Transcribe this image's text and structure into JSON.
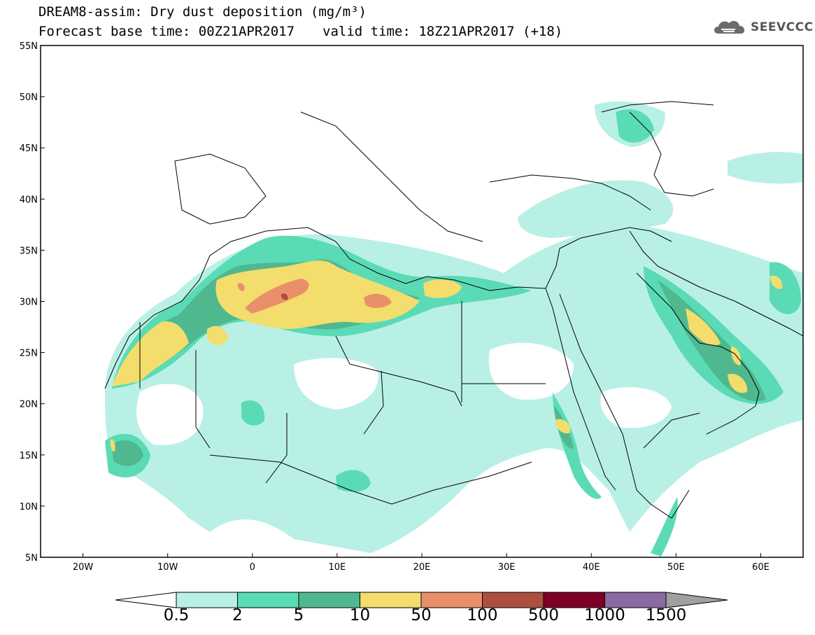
{
  "title": {
    "line1": "DREAM8-assim: Dry dust deposition (mg/m³)",
    "base_time": "Forecast base time: 00Z21APR2017",
    "valid_time": "valid time: 18Z21APR2017 (+18)"
  },
  "brand": {
    "name": "SEEVCCC",
    "icon": "cloud-logo-icon"
  },
  "map": {
    "extent": {
      "lon": [
        -25,
        65
      ],
      "lat": [
        5,
        55
      ]
    },
    "lat_ticks": [
      {
        "value": 55,
        "label": "55N"
      },
      {
        "value": 50,
        "label": "50N"
      },
      {
        "value": 45,
        "label": "45N"
      },
      {
        "value": 40,
        "label": "40N"
      },
      {
        "value": 35,
        "label": "35N"
      },
      {
        "value": 30,
        "label": "30N"
      },
      {
        "value": 25,
        "label": "25N"
      },
      {
        "value": 20,
        "label": "20N"
      },
      {
        "value": 15,
        "label": "15N"
      },
      {
        "value": 10,
        "label": "10N"
      },
      {
        "value": 5,
        "label": "5N"
      }
    ],
    "lon_ticks": [
      {
        "value": -20,
        "label": "20W"
      },
      {
        "value": -10,
        "label": "10W"
      },
      {
        "value": 0,
        "label": "0"
      },
      {
        "value": 10,
        "label": "10E"
      },
      {
        "value": 20,
        "label": "20E"
      },
      {
        "value": 30,
        "label": "30E"
      },
      {
        "value": 40,
        "label": "40E"
      },
      {
        "value": 50,
        "label": "50E"
      },
      {
        "value": 60,
        "label": "60E"
      }
    ]
  },
  "colorbar": {
    "labels": [
      "0.5",
      "2",
      "5",
      "10",
      "50",
      "100",
      "500",
      "1000",
      "1500"
    ],
    "colors": [
      "#b8f0e6",
      "#5adbb5",
      "#4fb88f",
      "#f3dd6d",
      "#e9906a",
      "#ad4e3f",
      "#7e0025",
      "#8a6aa0"
    ],
    "under_color": "#ffffff",
    "over_color": "#a0a0a0"
  }
}
